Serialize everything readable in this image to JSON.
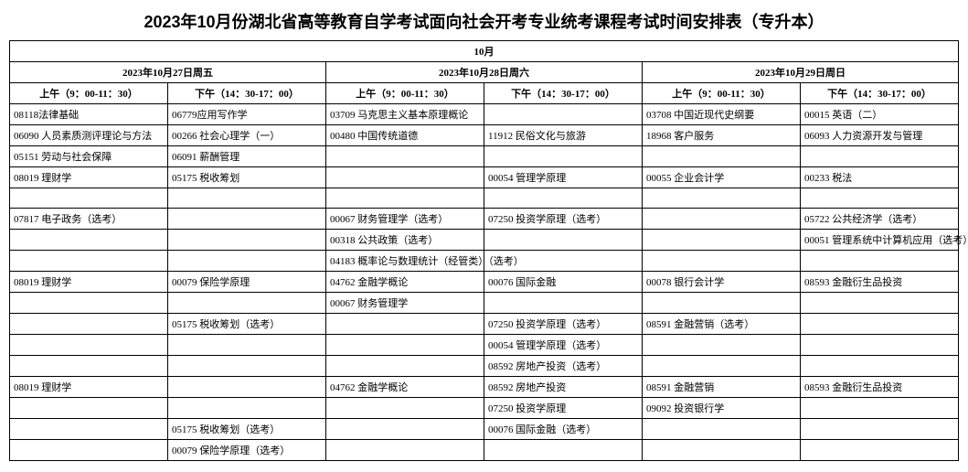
{
  "title": "2023年10月份湖北省高等教育自学考试面向社会开考专业统考课程考试时间安排表（专升本）",
  "month": "10月",
  "days": {
    "d1": "2023年10月27日周五",
    "d2": "2023年10月28日周六",
    "d3": "2023年10月29日周日"
  },
  "sessions": {
    "am": "上午（9：00-11：30）",
    "pm": "下午（14：30-17：00）"
  },
  "rows": [
    {
      "c1": "08118法律基础",
      "c2": "06779应用写作学",
      "c3": "03709 马克思主义基本原理概论",
      "c4": "",
      "c5": "03708 中国近现代史纲要",
      "c6": "00015 英语（二）"
    },
    {
      "c1": "06090 人员素质测评理论与方法",
      "c2": "00266 社会心理学（一）",
      "c3": "00480 中国传统道德",
      "c4": "11912 民俗文化与旅游",
      "c5": "18968 客户服务",
      "c6": "06093 人力资源开发与管理"
    },
    {
      "c1": "05151 劳动与社会保障",
      "c2": "06091 薪酬管理",
      "c3": "",
      "c4": "",
      "c5": "",
      "c6": ""
    },
    {
      "c1": "08019 理财学",
      "c2": "05175 税收筹划",
      "c3": "",
      "c4": "00054 管理学原理",
      "c5": "00055 企业会计学",
      "c6": "00233 税法"
    },
    {
      "c1": "",
      "c2": "",
      "c3": "",
      "c4": "",
      "c5": "",
      "c6": ""
    },
    {
      "c1": "07817 电子政务（选考）",
      "c2": "",
      "c3": "00067 财务管理学（选考）",
      "c4": "07250 投资学原理（选考）",
      "c5": "",
      "c6": "05722 公共经济学（选考）"
    },
    {
      "c1": "",
      "c2": "",
      "c3": "00318 公共政策（选考）",
      "c4": "",
      "c5": "",
      "c6": "00051 管理系统中计算机应用（选考）"
    },
    {
      "c1": "",
      "c2": "",
      "c3": "04183 概率论与数理统计（经管类）（选考）",
      "c4": "",
      "c5": "",
      "c6": ""
    },
    {
      "c1": "08019 理财学",
      "c2": "00079 保险学原理",
      "c3": "04762 金融学概论",
      "c4": "00076 国际金融",
      "c5": "00078 银行会计学",
      "c6": "08593 金融衍生品投资"
    },
    {
      "c1": "",
      "c2": "",
      "c3": "00067 财务管理学",
      "c4": "",
      "c5": "",
      "c6": ""
    },
    {
      "c1": "",
      "c2": "05175 税收筹划（选考）",
      "c3": "",
      "c4": "07250 投资学原理（选考）",
      "c5": "08591 金融营销（选考）",
      "c6": ""
    },
    {
      "c1": "",
      "c2": "",
      "c3": "",
      "c4": "00054 管理学原理（选考）",
      "c5": "",
      "c6": ""
    },
    {
      "c1": "",
      "c2": "",
      "c3": "",
      "c4": "08592 房地产投资（选考）",
      "c5": "",
      "c6": ""
    },
    {
      "c1": "08019 理财学",
      "c2": "",
      "c3": "04762 金融学概论",
      "c4": "08592 房地产投资",
      "c5": "08591 金融营销",
      "c6": "08593 金融衍生品投资"
    },
    {
      "c1": "",
      "c2": "",
      "c3": "",
      "c4": "07250 投资学原理",
      "c5": "09092 投资银行学",
      "c6": ""
    },
    {
      "c1": "",
      "c2": "05175 税收筹划（选考）",
      "c3": "",
      "c4": "00076 国际金融（选考）",
      "c5": "",
      "c6": ""
    },
    {
      "c1": "",
      "c2": "00079 保险学原理（选考）",
      "c3": "",
      "c4": "",
      "c5": "",
      "c6": ""
    }
  ]
}
